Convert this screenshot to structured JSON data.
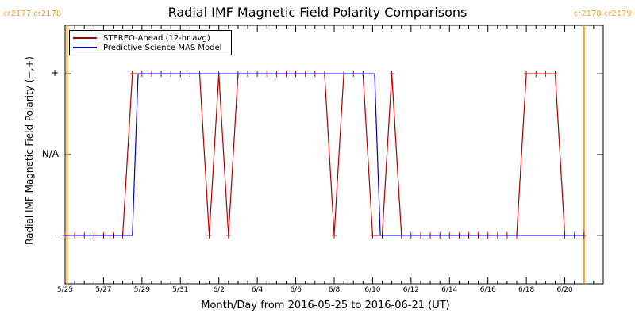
{
  "chart_data": {
    "type": "line",
    "title": "Radial IMF Magnetic Field Polarity Comparisons",
    "xlabel": "Month/Day from 2016-05-25 to 2016-06-21 (UT)",
    "ylabel": "Radial IMF Magnetic Field Polarity (−,+)",
    "xlim": [
      "2016-05-25",
      "2016-06-22"
    ],
    "ylim": [
      -1.6,
      1.6
    ],
    "y_ticks": [
      {
        "value": 1,
        "label": "+"
      },
      {
        "value": 0,
        "label": "N/A"
      },
      {
        "value": -1,
        "label": "–"
      }
    ],
    "x_ticks": [
      {
        "day": 0,
        "label": "5/25"
      },
      {
        "day": 2,
        "label": "5/27"
      },
      {
        "day": 4,
        "label": "5/29"
      },
      {
        "day": 6,
        "label": "5/31"
      },
      {
        "day": 8,
        "label": "6/2"
      },
      {
        "day": 10,
        "label": "6/4"
      },
      {
        "day": 12,
        "label": "6/6"
      },
      {
        "day": 14,
        "label": "6/8"
      },
      {
        "day": 16,
        "label": "6/10"
      },
      {
        "day": 18,
        "label": "6/12"
      },
      {
        "day": 20,
        "label": "6/14"
      },
      {
        "day": 22,
        "label": "6/16"
      },
      {
        "day": 24,
        "label": "6/18"
      },
      {
        "day": 26,
        "label": "6/20"
      }
    ],
    "legend_position": "top-left",
    "carrington_labels": {
      "left": "cr2177 cr2178",
      "right": "cr2178 cr2179"
    },
    "carrington_boundaries_day": [
      0.1,
      27.0
    ],
    "series": [
      {
        "name": "STEREO-Ahead (12-hr avg)",
        "color": "#b00000",
        "markers": true,
        "x": [
          0.0,
          0.5,
          1.0,
          1.5,
          2.0,
          2.5,
          3.0,
          3.5,
          4.0,
          4.5,
          5.0,
          5.5,
          6.0,
          6.5,
          7.0,
          7.5,
          8.0,
          8.5,
          9.0,
          9.5,
          10.0,
          10.5,
          11.0,
          11.5,
          12.0,
          12.5,
          13.0,
          13.5,
          14.0,
          14.5,
          15.0,
          15.5,
          16.0,
          16.5,
          17.0,
          17.5,
          18.0,
          18.5,
          19.0,
          19.5,
          20.0,
          20.5,
          21.0,
          21.5,
          22.0,
          22.5,
          23.0,
          23.5,
          24.0,
          24.5,
          25.0,
          25.5,
          26.0,
          26.5,
          27.0
        ],
        "y": [
          -1,
          -1,
          -1,
          -1,
          -1,
          -1,
          -1,
          1,
          1,
          1,
          1,
          1,
          1,
          1,
          1,
          -1,
          1,
          -1,
          1,
          1,
          1,
          1,
          1,
          1,
          1,
          1,
          1,
          1,
          -1,
          1,
          1,
          1,
          -1,
          -1,
          1,
          -1,
          -1,
          -1,
          -1,
          -1,
          -1,
          -1,
          -1,
          -1,
          -1,
          -1,
          -1,
          -1,
          1,
          1,
          1,
          1,
          -1,
          -1,
          -1
        ]
      },
      {
        "name": "Predictive Science MAS Model",
        "color": "#0000c8",
        "markers": false,
        "x": [
          0.0,
          3.5,
          3.8,
          16.1,
          16.4,
          27.0
        ],
        "y": [
          -1,
          -1,
          1,
          1,
          -1,
          -1
        ]
      }
    ]
  }
}
